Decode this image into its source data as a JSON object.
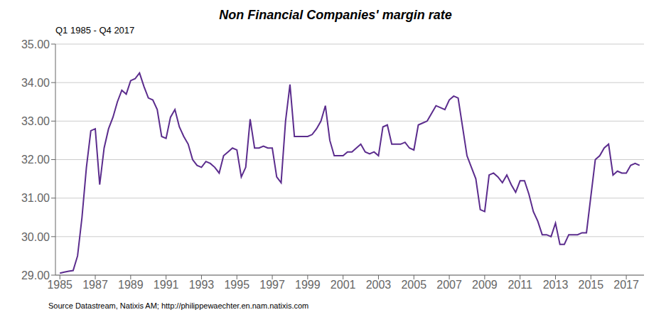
{
  "chart_data": {
    "type": "line",
    "title": "Non Financial Companies' margin rate",
    "subtitle": "Q1 1985 - Q4 2017",
    "annotations": [
      "Source Datastream, Natixis AM; http://philippewaechter.en.nam.natixis.com"
    ],
    "color": "#5b2c8d",
    "grid": "y",
    "xlim": [
      1984.75,
      2018.0
    ],
    "xticks": [
      1985,
      1987,
      1989,
      1991,
      1993,
      1995,
      1997,
      1999,
      2001,
      2003,
      2005,
      2007,
      2009,
      2011,
      2013,
      2015,
      2017
    ],
    "ylim": [
      29.0,
      35.0
    ],
    "yticks": [
      {
        "value": 29.0,
        "label": "29.00"
      },
      {
        "value": 30.0,
        "label": "30.00"
      },
      {
        "value": 31.0,
        "label": "31.00"
      },
      {
        "value": 32.0,
        "label": "32.00"
      },
      {
        "value": 33.0,
        "label": "33.00"
      },
      {
        "value": 34.0,
        "label": "34.00"
      },
      {
        "value": 35.0,
        "label": "35.00"
      }
    ],
    "x": [
      1985,
      1985.25,
      1985.5,
      1985.75,
      1986,
      1986.25,
      1986.5,
      1986.75,
      1987,
      1987.25,
      1987.5,
      1987.75,
      1988,
      1988.25,
      1988.5,
      1988.75,
      1989,
      1989.25,
      1989.5,
      1989.75,
      1990,
      1990.25,
      1990.5,
      1990.75,
      1991,
      1991.25,
      1991.5,
      1991.75,
      1992,
      1992.25,
      1992.5,
      1992.75,
      1993,
      1993.25,
      1993.5,
      1993.75,
      1994,
      1994.25,
      1994.5,
      1994.75,
      1995,
      1995.25,
      1995.5,
      1995.75,
      1996,
      1996.25,
      1996.5,
      1996.75,
      1997,
      1997.25,
      1997.5,
      1997.75,
      1998,
      1998.25,
      1998.5,
      1998.75,
      1999,
      1999.25,
      1999.5,
      1999.75,
      2000,
      2000.25,
      2000.5,
      2000.75,
      2001,
      2001.25,
      2001.5,
      2001.75,
      2002,
      2002.25,
      2002.5,
      2002.75,
      2003,
      2003.25,
      2003.5,
      2003.75,
      2004,
      2004.25,
      2004.5,
      2004.75,
      2005,
      2005.25,
      2005.5,
      2005.75,
      2006,
      2006.25,
      2006.5,
      2006.75,
      2007,
      2007.25,
      2007.5,
      2007.75,
      2008,
      2008.25,
      2008.5,
      2008.75,
      2009,
      2009.25,
      2009.5,
      2009.75,
      2010,
      2010.25,
      2010.5,
      2010.75,
      2011,
      2011.25,
      2011.5,
      2011.75,
      2012,
      2012.25,
      2012.5,
      2012.75,
      2013,
      2013.25,
      2013.5,
      2013.75,
      2014,
      2014.25,
      2014.5,
      2014.75,
      2015,
      2015.25,
      2015.5,
      2015.75,
      2016,
      2016.25,
      2016.5,
      2016.75,
      2017,
      2017.25,
      2017.5,
      2017.75
    ],
    "values": [
      29.05,
      29.08,
      29.1,
      29.12,
      29.5,
      30.5,
      31.8,
      32.75,
      32.8,
      31.35,
      32.3,
      32.8,
      33.1,
      33.5,
      33.8,
      33.7,
      34.05,
      34.1,
      34.25,
      33.9,
      33.6,
      33.55,
      33.3,
      32.6,
      32.55,
      33.1,
      33.3,
      32.85,
      32.6,
      32.4,
      32.0,
      31.85,
      31.8,
      31.95,
      31.9,
      31.8,
      31.65,
      32.1,
      32.2,
      32.3,
      32.25,
      31.55,
      31.8,
      33.05,
      32.3,
      32.3,
      32.35,
      32.3,
      32.3,
      31.55,
      31.4,
      33.0,
      33.95,
      32.6,
      32.6,
      32.6,
      32.6,
      32.65,
      32.8,
      33.0,
      33.4,
      32.5,
      32.1,
      32.1,
      32.1,
      32.2,
      32.2,
      32.3,
      32.4,
      32.2,
      32.15,
      32.2,
      32.1,
      32.85,
      32.9,
      32.4,
      32.4,
      32.4,
      32.45,
      32.3,
      32.25,
      32.9,
      32.95,
      33.0,
      33.2,
      33.4,
      33.35,
      33.3,
      33.55,
      33.65,
      33.6,
      32.85,
      32.1,
      31.8,
      31.5,
      30.7,
      30.65,
      31.6,
      31.65,
      31.55,
      31.4,
      31.6,
      31.35,
      31.15,
      31.45,
      31.45,
      31.1,
      30.65,
      30.4,
      30.05,
      30.05,
      30.0,
      30.35,
      29.8,
      29.8,
      30.05,
      30.05,
      30.05,
      30.1,
      30.1,
      31.05,
      32.0,
      32.1,
      32.3,
      32.4,
      31.6,
      31.7,
      31.65,
      31.65,
      31.85,
      31.9,
      31.85
    ]
  }
}
